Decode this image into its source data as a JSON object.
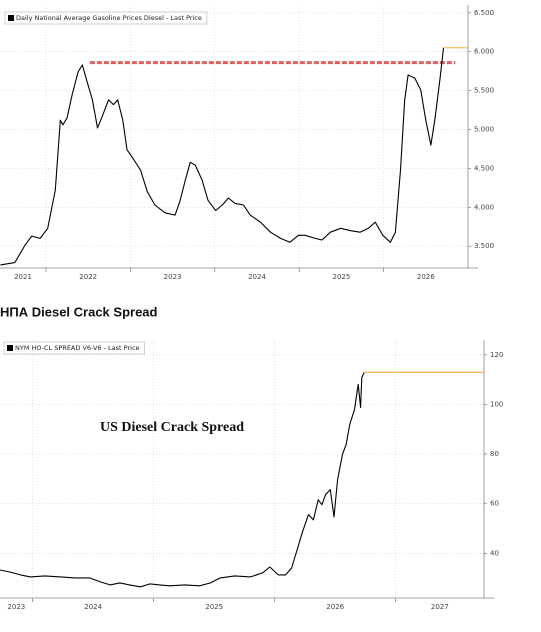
{
  "chart_data": [
    {
      "type": "line",
      "x": [
        2021.46,
        2021.63,
        2021.75,
        2021.83,
        2021.93,
        2022.02,
        2022.11,
        2022.17,
        2022.2,
        2022.25,
        2022.31,
        2022.38,
        2022.43,
        2022.48,
        2022.55,
        2022.61,
        2022.66,
        2022.74,
        2022.8,
        2022.85,
        2022.91,
        2022.96,
        2023.03,
        2023.12,
        2023.2,
        2023.29,
        2023.41,
        2023.53,
        2023.59,
        2023.65,
        2023.71,
        2023.77,
        2023.85,
        2023.92,
        2024.01,
        2024.09,
        2024.16,
        2024.24,
        2024.34,
        2024.42,
        2024.54,
        2024.66,
        2024.78,
        2024.89,
        2024.99,
        2025.07,
        2025.19,
        2025.27,
        2025.37,
        2025.49,
        2025.61,
        2025.72,
        2025.82,
        2025.9,
        2025.99,
        2026.08,
        2026.14,
        2026.2,
        2026.25,
        2026.29,
        2026.37,
        2026.44,
        2026.5,
        2026.56,
        2026.61,
        2026.67,
        2026.71
      ],
      "series": [
        {
          "name": "Daily National Average Gasoline Prices Diesel - Last Price",
          "color": "#000000",
          "values": [
            3.26,
            3.29,
            3.51,
            3.63,
            3.6,
            3.73,
            4.22,
            5.12,
            5.06,
            5.15,
            5.45,
            5.74,
            5.83,
            5.64,
            5.38,
            5.02,
            5.15,
            5.38,
            5.32,
            5.38,
            5.12,
            4.74,
            4.63,
            4.48,
            4.2,
            4.03,
            3.93,
            3.9,
            4.09,
            4.35,
            4.58,
            4.54,
            4.35,
            4.09,
            3.96,
            4.03,
            4.12,
            4.05,
            4.03,
            3.9,
            3.81,
            3.68,
            3.6,
            3.55,
            3.64,
            3.64,
            3.6,
            3.58,
            3.68,
            3.73,
            3.7,
            3.68,
            3.73,
            3.81,
            3.64,
            3.55,
            3.68,
            4.48,
            5.38,
            5.7,
            5.66,
            5.51,
            5.12,
            4.8,
            5.15,
            5.66,
            6.05
          ]
        }
      ],
      "last_price_color": "#f5a623",
      "reference_line": {
        "value": 5.86,
        "x": [
          2022.52,
          2026.85
        ],
        "color": "#e06060"
      },
      "xlim": [
        2021.455,
        2027.0
      ],
      "xticks": [
        2021,
        2022,
        2023,
        2024,
        2025,
        2026
      ],
      "ylim": [
        3.22,
        6.6
      ],
      "yticks": [
        {
          "value": 6.5,
          "label": "6.500"
        },
        {
          "value": 6.0,
          "label": "6.000"
        },
        {
          "value": 5.5,
          "label": "5.500"
        },
        {
          "value": 5.0,
          "label": "5.000"
        },
        {
          "value": 4.5,
          "label": "4.500"
        },
        {
          "value": 4.0,
          "label": "4.000"
        },
        {
          "value": 3.5,
          "label": "3.500"
        }
      ],
      "grid": true
    },
    {
      "type": "line",
      "title": "НПА Diesel Crack Spread",
      "annotation": "US Diesel Crack Spread",
      "x": [
        2023.73,
        2023.81,
        2023.9,
        2023.98,
        2024.1,
        2024.23,
        2024.35,
        2024.47,
        2024.56,
        2024.64,
        2024.72,
        2024.8,
        2024.89,
        2024.97,
        2025.05,
        2025.13,
        2025.26,
        2025.38,
        2025.47,
        2025.55,
        2025.67,
        2025.8,
        2025.9,
        2025.96,
        2026.03,
        2026.09,
        2026.14,
        2026.19,
        2026.23,
        2026.28,
        2026.32,
        2026.36,
        2026.39,
        2026.42,
        2026.46,
        2026.49,
        2026.52,
        2026.56,
        2026.59,
        2026.62,
        2026.66,
        2026.69,
        2026.71,
        2026.72,
        2026.74
      ],
      "series": [
        {
          "name": "NYM HO-CL SPREAD V6-V6 - Last Price",
          "color": "#000000",
          "values": [
            33.3,
            32.5,
            31.3,
            30.5,
            30.9,
            30.5,
            30.1,
            30.1,
            28.5,
            27.3,
            28.1,
            27.3,
            26.5,
            27.7,
            27.3,
            26.9,
            27.3,
            26.9,
            28.1,
            30.1,
            30.9,
            30.5,
            32.1,
            34.5,
            31.3,
            31.3,
            34.1,
            42.2,
            48.7,
            55.6,
            53.5,
            61.6,
            59.6,
            63.6,
            65.7,
            54.7,
            69.7,
            79.8,
            83.8,
            91.9,
            98.0,
            108.1,
            98.8,
            110.9,
            113.0
          ]
        }
      ],
      "last_price_color": "#f5a623",
      "xlim": [
        2023.73,
        2027.73
      ],
      "xticks": [
        2023,
        2024,
        2025,
        2026,
        2027
      ],
      "ylim": [
        22,
        126
      ],
      "yticks": [
        120,
        100,
        80,
        60,
        40
      ],
      "grid": true
    }
  ]
}
